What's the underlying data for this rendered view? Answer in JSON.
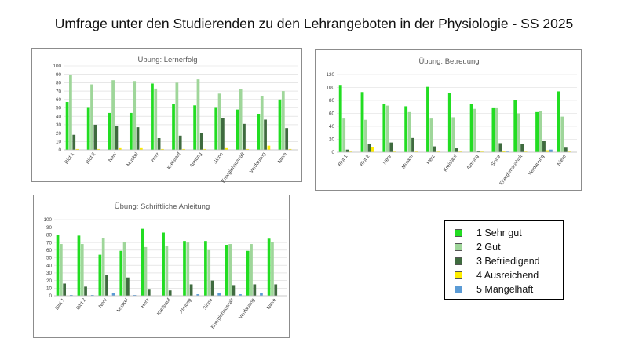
{
  "title": "Umfrage unter den Studierenden zu den Lehrangeboten in der Physiologie - SS 2025",
  "colors": {
    "1 Sehr gut": "#22dd22",
    "2 Gut": "#9fd69a",
    "3 Befriedigend": "#3f6b3f",
    "4 Ausreichend": "#ffee00",
    "5 Mangelhaft": "#5b9bd5"
  },
  "legend": {
    "items": [
      {
        "label": "1 Sehr gut",
        "color": "#22dd22"
      },
      {
        "label": "2 Gut",
        "color": "#9fd69a"
      },
      {
        "label": "3 Befriedigend",
        "color": "#3f6b3f"
      },
      {
        "label": "4 Ausreichend",
        "color": "#ffee00"
      },
      {
        "label": "5 Mangelhaft",
        "color": "#5b9bd5"
      }
    ]
  },
  "chart_data": [
    {
      "type": "bar",
      "title": "Übung: Lernerfolg",
      "categories": [
        "Blut 1",
        "Blut 2",
        "Nerv",
        "Muskel",
        "Herz",
        "Kreislauf",
        "Atmung",
        "Sinne",
        "Energiehaushalt",
        "Verdauung",
        "Niere"
      ],
      "ylim": [
        0,
        100
      ],
      "yticks": [
        0,
        10,
        20,
        30,
        40,
        50,
        60,
        70,
        80,
        90,
        100
      ],
      "grid": true,
      "series": [
        {
          "name": "1 Sehr gut",
          "values": [
            57,
            50,
            44,
            44,
            79,
            55,
            53,
            50,
            48,
            43,
            60
          ]
        },
        {
          "name": "2 Gut",
          "values": [
            89,
            78,
            83,
            82,
            73,
            80,
            84,
            67,
            72,
            64,
            70
          ]
        },
        {
          "name": "3 Befriedigend",
          "values": [
            18,
            30,
            29,
            27,
            14,
            17,
            20,
            38,
            31,
            36,
            26
          ]
        },
        {
          "name": "4 Ausreichend",
          "values": [
            1,
            1,
            2,
            2,
            1,
            1,
            1,
            2,
            1,
            5,
            1
          ]
        },
        {
          "name": "5 Mangelhaft",
          "values": [
            0,
            0,
            0,
            0,
            0,
            0,
            0,
            0,
            0,
            0,
            0
          ]
        }
      ]
    },
    {
      "type": "bar",
      "title": "Übung: Betreuung",
      "categories": [
        "Blut 1",
        "Blut 2",
        "Nerv",
        "Muskel",
        "Herz",
        "Kreislauf",
        "Atmung",
        "Sinne",
        "Energiehaushalt",
        "Verdauung",
        "Niere"
      ],
      "ylim": [
        0,
        120
      ],
      "yticks": [
        0,
        20,
        40,
        60,
        80,
        100,
        120
      ],
      "grid": true,
      "series": [
        {
          "name": "1 Sehr gut",
          "values": [
            104,
            93,
            75,
            71,
            101,
            91,
            75,
            68,
            80,
            62,
            94
          ]
        },
        {
          "name": "2 Gut",
          "values": [
            52,
            50,
            72,
            62,
            52,
            54,
            67,
            68,
            60,
            64,
            55
          ]
        },
        {
          "name": "3 Befriedigend",
          "values": [
            4,
            13,
            15,
            22,
            9,
            6,
            2,
            14,
            13,
            17,
            7
          ]
        },
        {
          "name": "4 Ausreichend",
          "values": [
            1,
            8,
            1,
            1,
            1,
            1,
            1,
            2,
            1,
            3,
            1
          ]
        },
        {
          "name": "5 Mangelhaft",
          "values": [
            0,
            0,
            0,
            0,
            0,
            0,
            0,
            1,
            0,
            4,
            0
          ]
        }
      ]
    },
    {
      "type": "bar",
      "title": "Übung: Schriftliche Anleitung",
      "categories": [
        "Blut 1",
        "Blut 2",
        "Nerv",
        "Muskel",
        "Herz",
        "Kreislauf",
        "Atmung",
        "Sinne",
        "Energiehaushalt",
        "Verdauung",
        "Niere"
      ],
      "ylim": [
        0,
        100
      ],
      "yticks": [
        0,
        10,
        20,
        30,
        40,
        50,
        60,
        70,
        80,
        90,
        100
      ],
      "grid": true,
      "series": [
        {
          "name": "1 Sehr gut",
          "values": [
            80,
            79,
            54,
            59,
            88,
            83,
            72,
            72,
            67,
            59,
            75
          ]
        },
        {
          "name": "2 Gut",
          "values": [
            68,
            68,
            76,
            71,
            64,
            65,
            70,
            60,
            68,
            68,
            71
          ]
        },
        {
          "name": "3 Befriedigend",
          "values": [
            16,
            12,
            27,
            24,
            8,
            7,
            15,
            20,
            14,
            15,
            15
          ]
        },
        {
          "name": "4 Ausreichend",
          "values": [
            0,
            0,
            0,
            0,
            0,
            0,
            0,
            0,
            0,
            0,
            0
          ]
        },
        {
          "name": "5 Mangelhaft",
          "values": [
            1,
            1,
            4,
            1,
            0,
            0,
            2,
            4,
            2,
            4,
            0
          ]
        }
      ]
    }
  ]
}
